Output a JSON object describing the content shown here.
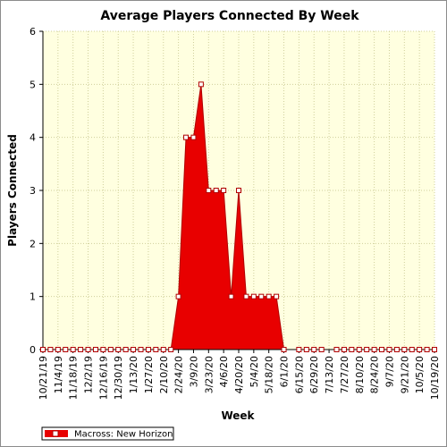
{
  "chart_data": {
    "type": "area",
    "title": "Average Players Connected By Week",
    "xlabel": "Week",
    "ylabel": "Players Connected",
    "ylim": [
      0,
      6
    ],
    "yticks": [
      0,
      1,
      2,
      3,
      4,
      5,
      6
    ],
    "grid": true,
    "legend_position": "bottom-left",
    "colors": {
      "fill": "#e80000",
      "plot_bg": "#ffffe0",
      "grid": "#cfcf9a",
      "marker_fill": "#ffffff"
    },
    "x_tick_labels": [
      "10/21/19",
      "11/4/19",
      "11/18/19",
      "12/2/19",
      "12/16/19",
      "12/30/19",
      "1/13/20",
      "1/27/20",
      "2/10/20",
      "2/24/20",
      "3/9/20",
      "3/23/20",
      "4/6/20",
      "4/20/20",
      "5/4/20",
      "5/18/20",
      "6/1/20",
      "6/15/20",
      "6/29/20",
      "7/13/20",
      "7/27/20",
      "8/10/20",
      "8/24/20",
      "9/7/20",
      "9/21/20",
      "10/5/20",
      "10/19/20"
    ],
    "series": [
      {
        "name": "Macross: New Horizon",
        "x": [
          "10/21/19",
          "10/28/19",
          "11/4/19",
          "11/11/19",
          "11/18/19",
          "11/25/19",
          "12/2/19",
          "12/9/19",
          "12/16/19",
          "12/23/19",
          "12/30/19",
          "1/6/20",
          "1/13/20",
          "1/20/20",
          "1/27/20",
          "2/3/20",
          "2/10/20",
          "2/17/20",
          "2/24/20",
          "3/2/20",
          "3/9/20",
          "3/16/20",
          "3/23/20",
          "3/30/20",
          "4/6/20",
          "4/13/20",
          "4/20/20",
          "4/27/20",
          "5/4/20",
          "5/11/20",
          "5/18/20",
          "5/25/20",
          "6/1/20",
          "6/8/20",
          "6/15/20",
          "6/22/20",
          "6/29/20",
          "7/6/20",
          "7/13/20",
          "7/20/20",
          "7/27/20",
          "8/3/20",
          "8/10/20",
          "8/17/20",
          "8/24/20",
          "8/31/20",
          "9/7/20",
          "9/14/20",
          "9/21/20",
          "9/28/20",
          "10/5/20",
          "10/12/20",
          "10/19/20"
        ],
        "values": [
          0,
          0,
          0,
          0,
          0,
          0,
          0,
          0,
          0,
          0,
          0,
          0,
          0,
          0,
          0,
          0,
          0,
          0,
          1,
          4,
          4,
          5,
          3,
          3,
          3,
          1,
          3,
          1,
          1,
          1,
          1,
          1,
          0,
          null,
          0,
          0,
          0,
          0,
          null,
          0,
          0,
          0,
          0,
          0,
          0,
          0,
          0,
          0,
          0,
          0,
          0,
          0,
          0
        ]
      }
    ]
  }
}
